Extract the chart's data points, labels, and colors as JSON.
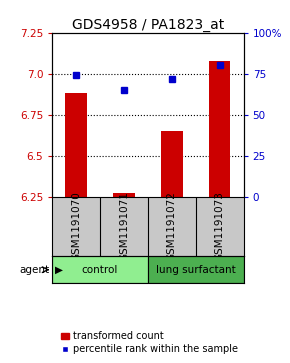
{
  "title": "GDS4958 / PA1823_at",
  "samples": [
    "GSM1191070",
    "GSM1191071",
    "GSM1191072",
    "GSM1191073"
  ],
  "transformed_count": [
    6.88,
    6.27,
    6.65,
    7.08
  ],
  "percentile_rank": [
    74,
    65,
    72,
    80
  ],
  "ylim_left": [
    6.25,
    7.25
  ],
  "ylim_right": [
    0,
    100
  ],
  "yticks_left": [
    6.25,
    6.5,
    6.75,
    7.0,
    7.25
  ],
  "yticks_right": [
    0,
    25,
    50,
    75,
    100
  ],
  "ytick_labels_right": [
    "0",
    "25",
    "50",
    "75",
    "100%"
  ],
  "groups": [
    {
      "label": "control",
      "indices": [
        0,
        1
      ],
      "color": "#90ee90"
    },
    {
      "label": "lung surfactant",
      "indices": [
        2,
        3
      ],
      "color": "#4caf50"
    }
  ],
  "bar_color": "#cc0000",
  "dot_color": "#0000cc",
  "bar_width": 0.45,
  "background_plot": "#ffffff",
  "background_table": "#c8c8c8",
  "title_fontsize": 10,
  "axis_fontsize": 7.5,
  "label_fontsize": 7.5,
  "tick_label_fontsize": 7.5,
  "legend_fontsize": 7
}
